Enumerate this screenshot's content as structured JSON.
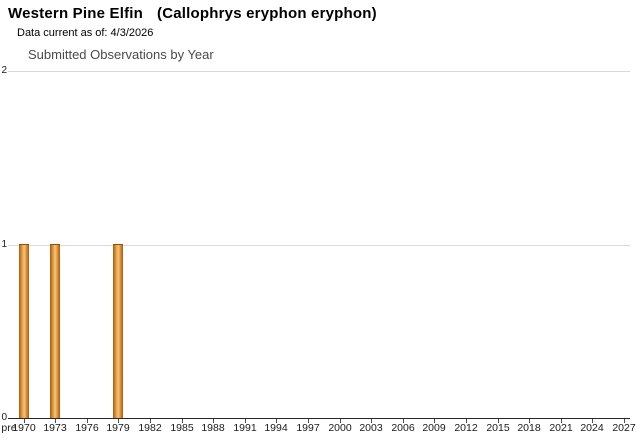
{
  "header": {
    "common_name": "Western Pine Elfin",
    "scientific_name": "(Callophrys eryphon eryphon)",
    "data_current": "Data current as of: 4/3/2026"
  },
  "chart_data": {
    "type": "bar",
    "title": "Submitted Observations by Year",
    "xlabel": "",
    "ylabel": "",
    "ylim": [
      0,
      2
    ],
    "y_ticks": [
      0,
      1,
      2
    ],
    "grid": "horizontal-light-gray",
    "legend": "none",
    "x_tick_labels": [
      "pre",
      "1970",
      "1973",
      "1976",
      "1979",
      "1982",
      "1985",
      "1988",
      "1991",
      "1994",
      "1997",
      "2000",
      "2003",
      "2006",
      "2009",
      "2012",
      "2015",
      "2018",
      "2021",
      "2024",
      "2027"
    ],
    "x_axis": {
      "pre_label": "pre",
      "first_tick_year": 1970,
      "tick_step_years": 3,
      "last_tick_year": 2027
    },
    "series": [
      {
        "name": "Submitted Observations",
        "data": [
          {
            "year": 1970,
            "count": 1
          },
          {
            "year": 1973,
            "count": 1
          },
          {
            "year": 1979,
            "count": 1
          }
        ]
      }
    ]
  },
  "colors": {
    "bar_edge": "#9d5e14",
    "bar_mid": "#c87d28",
    "bar_highlight": "#f4c382",
    "bar_border_top": "#8a5210",
    "gridline": "#d9d9d9",
    "axis": "#262626",
    "tick": "#4d4d4d",
    "axis_label_text": "#1a1a1a",
    "chart_title_text": "#4a4a4a",
    "background": "#ffffff"
  }
}
